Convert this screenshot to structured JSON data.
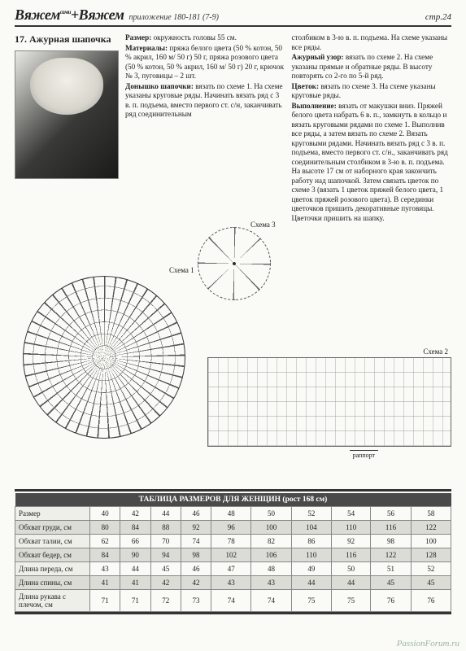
{
  "header": {
    "brand1": "Вяжем",
    "brand_sup1": "сами",
    "plus": "+",
    "brand2": "Вяжем",
    "brand_sup2": "КРЮЧКОМ",
    "issue": "приложение 180-181 (7-9)",
    "page": "стр.24"
  },
  "article": {
    "title": "17. Ажурная шапочка",
    "mid_text": "Размер: окружность головы 55 см.\nМатериалы: пряжа белого цвета (50 % котон, 50 % акрил, 160 м/ 50 г) 50 г, пряжа розового цвета (50 % котон, 50 % акрил, 160 м/ 50 г) 20 г, крючок № 3, пуговицы – 2 шт.\nДонышко шапочки: вязать по схеме 1. На схеме указаны круговые ряды. Начинать вязать ряд с 3 в. п. подъема, вместо первого ст. с/н, заканчивать ряд соединительным",
    "right_text": "столбиком в 3-ю в. п. подъема. На схеме указаны все ряды.\nАжурный узор: вязать по схеме 2. На схеме указаны прямые и обратные ряды. В высоту повторять со 2-го по 5-й ряд.\nЦветок: вязать по схеме 3. На схеме указаны круговые ряды.\nВыполнение: вязать от макушки вниз. Пряжей белого цвета набрать 6 в. п., замкнуть в кольцо и вязать круговыми рядами по схеме 1. Выполнив все ряды, а затем вязать по схеме 2. Вязать круговыми рядами. Начинать вязать ряд с 3 в. п. подъема, вместо первого ст. с/н., заканчивать ряд соединительным столбиком в 3-ю в. п. подъема. На высоте 17 см от наборного края закончить работу над шапочкой. Затем связать цветок по схеме 3 (вязать 1 цветок пряжей белого цвета, 1 цветок пряжей розового цвета). В серединки цветочков пришить декоративные пуговицы. Цветочки пришить на шапку."
  },
  "diagrams": {
    "label1": "Схема 1",
    "label2": "Схема 2",
    "label3": "Схема 3",
    "rapport": "раппорт"
  },
  "table": {
    "title": "ТАБЛИЦА РАЗМЕРОВ ДЛЯ ЖЕНЩИН (рост 168 см)",
    "rows": [
      {
        "label": "Размер",
        "vals": [
          40,
          42,
          44,
          46,
          48,
          50,
          52,
          54,
          56,
          58
        ]
      },
      {
        "label": "Обхват груди, см",
        "vals": [
          80,
          84,
          88,
          92,
          96,
          100,
          104,
          110,
          116,
          122
        ]
      },
      {
        "label": "Обхват талии, см",
        "vals": [
          62,
          66,
          70,
          74,
          78,
          82,
          86,
          92,
          98,
          100
        ]
      },
      {
        "label": "Обхват бедер, см",
        "vals": [
          84,
          90,
          94,
          98,
          102,
          106,
          110,
          116,
          122,
          128
        ]
      },
      {
        "label": "Длина переда, см",
        "vals": [
          43,
          44,
          45,
          46,
          47,
          48,
          49,
          50,
          51,
          52
        ]
      },
      {
        "label": "Длина спины, см",
        "vals": [
          41,
          41,
          42,
          42,
          43,
          43,
          44,
          44,
          45,
          45
        ]
      },
      {
        "label": "Длина рукава с плечом, см",
        "vals": [
          71,
          71,
          72,
          73,
          74,
          74,
          75,
          75,
          76,
          76
        ]
      }
    ]
  },
  "watermark": "PassionForum.ru"
}
